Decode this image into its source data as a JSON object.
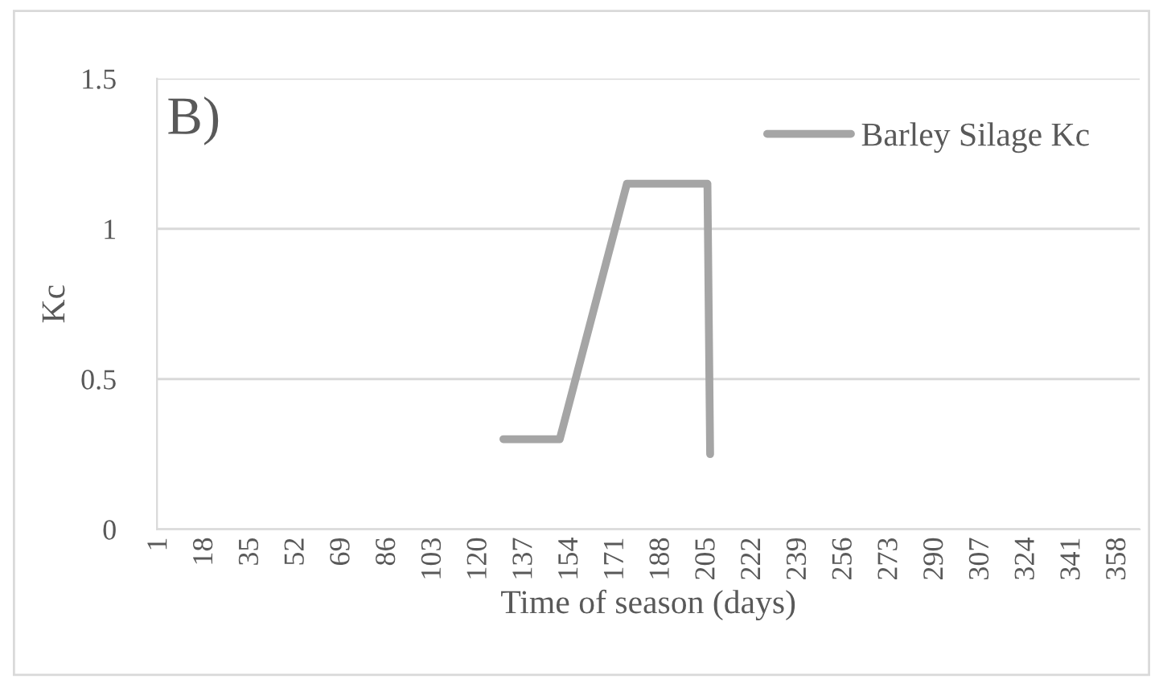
{
  "chart_data": {
    "type": "line",
    "xlabel": "Time of season (days)",
    "ylabel": "Kc",
    "annotations": [
      "B)"
    ],
    "series": [
      {
        "name": "Barley Silage Kc",
        "color": "#a5a5a5",
        "x": [
          129,
          150,
          175,
          205,
          206
        ],
        "values": [
          0.3,
          0.3,
          1.15,
          1.15,
          0.25
        ]
      }
    ],
    "xlim": [
      0,
      366
    ],
    "xticks": [
      1,
      18,
      35,
      52,
      69,
      86,
      103,
      120,
      137,
      154,
      171,
      188,
      205,
      222,
      239,
      256,
      273,
      290,
      307,
      324,
      341,
      358
    ],
    "ylim": [
      0,
      1.5
    ],
    "yticks": [
      0,
      0.5,
      1,
      1.5
    ],
    "grid": "y",
    "legend": "top right",
    "marker": "none",
    "line_style": "solid"
  }
}
